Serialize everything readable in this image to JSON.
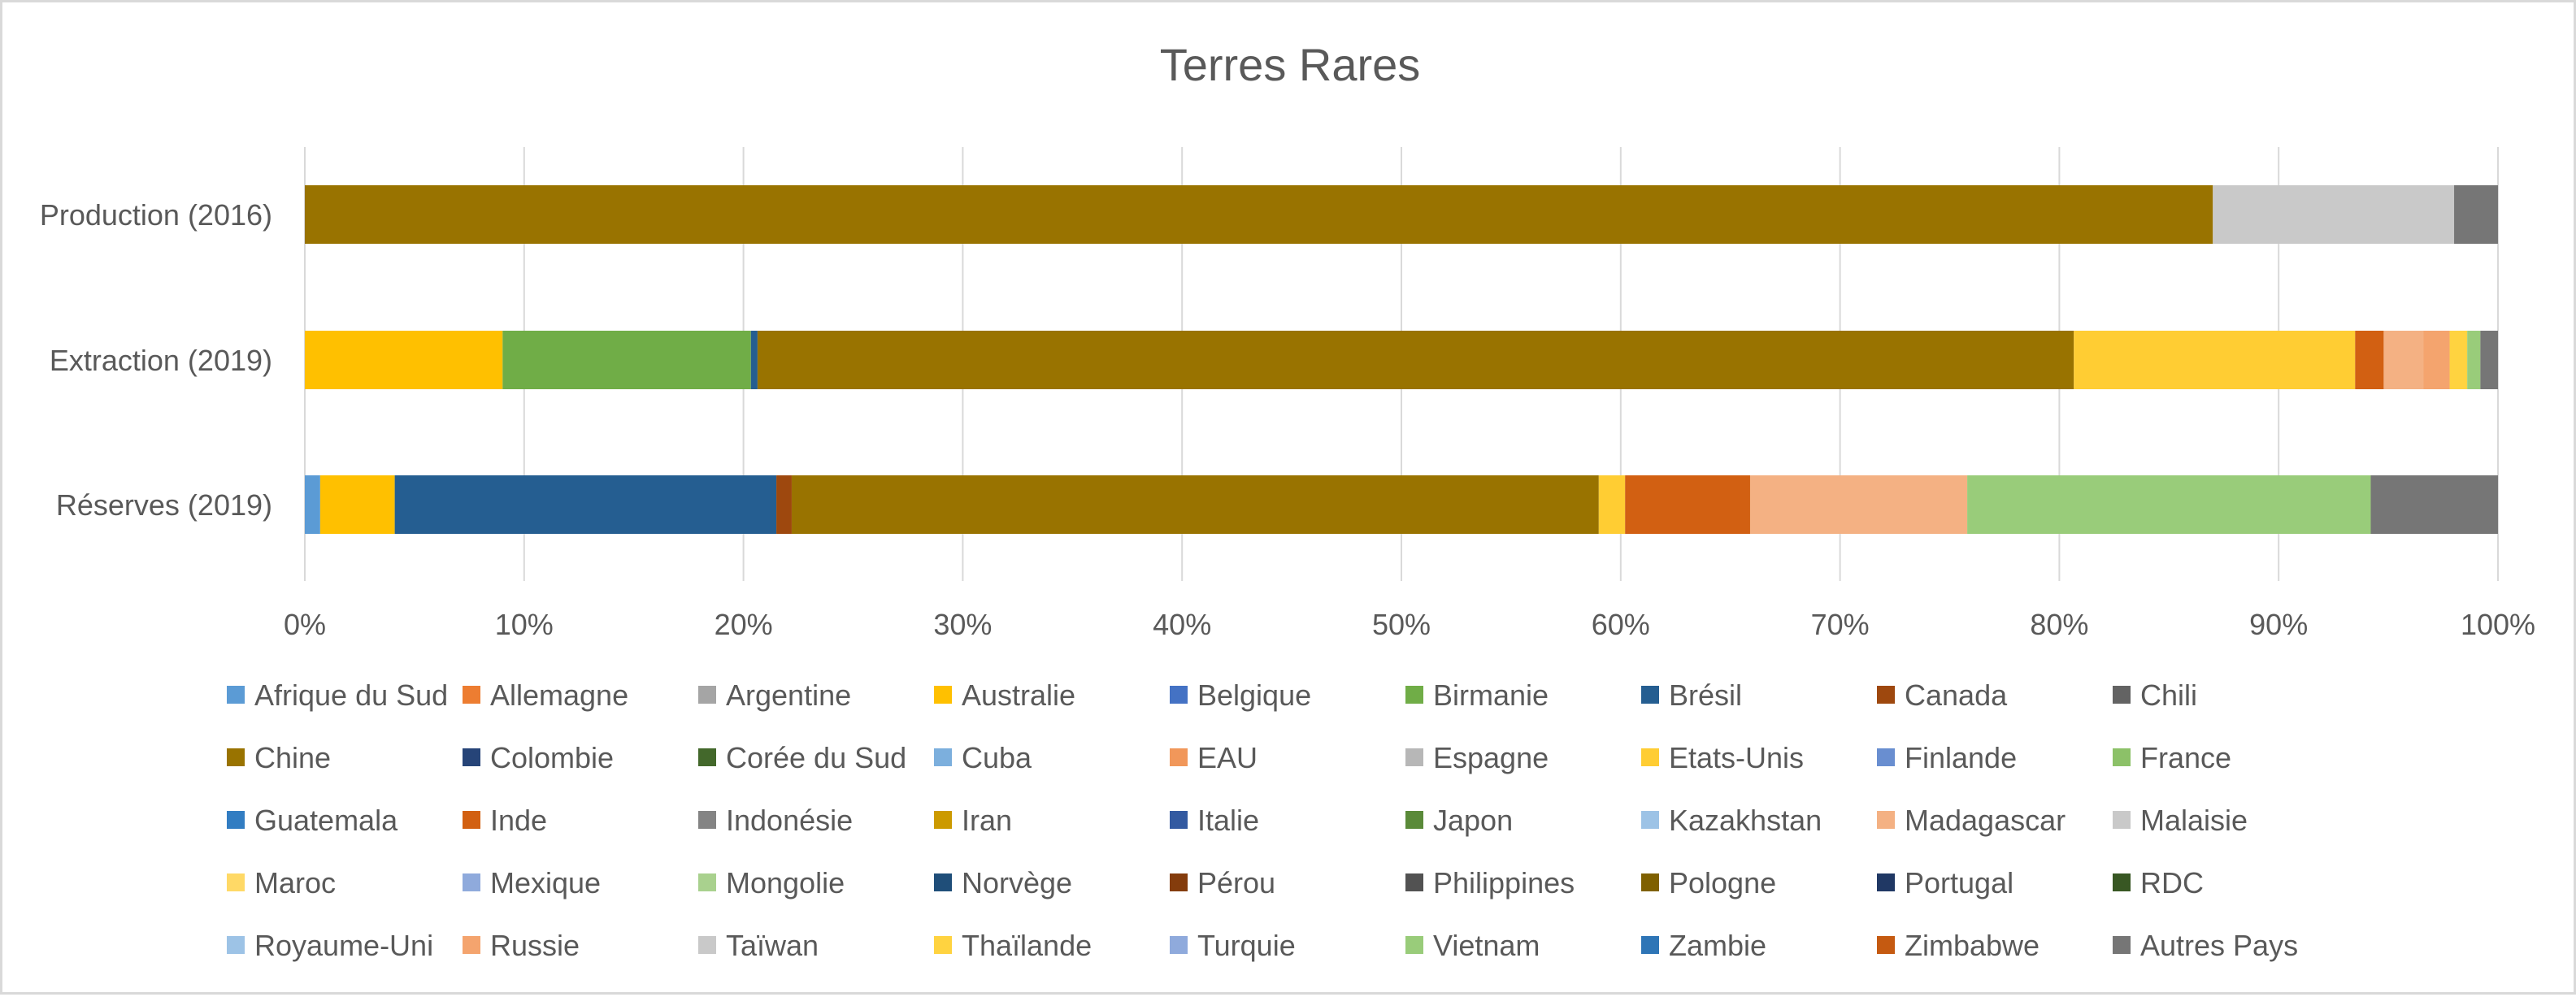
{
  "chart_data": {
    "type": "bar",
    "orientation": "horizontal",
    "stacked": "percent",
    "title": "Terres Rares",
    "xlabel": "",
    "ylabel": "",
    "xlim": [
      0,
      100
    ],
    "x_ticks": [
      "0%",
      "10%",
      "20%",
      "30%",
      "40%",
      "50%",
      "60%",
      "70%",
      "80%",
      "90%",
      "100%"
    ],
    "grid": true,
    "legend_position": "bottom",
    "categories": [
      "Production (2016)",
      "Extraction (2019)",
      "Réserves (2019)"
    ],
    "series": [
      {
        "name": "Afrique du Sud",
        "color": "#5b9bd5",
        "values": [
          0,
          0,
          0.7
        ]
      },
      {
        "name": "Allemagne",
        "color": "#ed7d31",
        "values": [
          0,
          0,
          0
        ]
      },
      {
        "name": "Argentine",
        "color": "#a5a5a5",
        "values": [
          0,
          0,
          0
        ]
      },
      {
        "name": "Australie",
        "color": "#ffc000",
        "values": [
          0,
          9.0,
          3.4
        ]
      },
      {
        "name": "Belgique",
        "color": "#4472c4",
        "values": [
          0,
          0,
          0
        ]
      },
      {
        "name": "Birmanie",
        "color": "#70ad47",
        "values": [
          0,
          11.3,
          0
        ]
      },
      {
        "name": "Brésil",
        "color": "#255e91",
        "values": [
          0,
          0.3,
          17.4
        ]
      },
      {
        "name": "Canada",
        "color": "#9e480e",
        "values": [
          0,
          0,
          0.7
        ]
      },
      {
        "name": "Chili",
        "color": "#636363",
        "values": [
          0,
          0,
          0
        ]
      },
      {
        "name": "Chine",
        "color": "#997300",
        "values": [
          87.0,
          59.9,
          36.8
        ]
      },
      {
        "name": "Colombie",
        "color": "#264478",
        "values": [
          0,
          0,
          0
        ]
      },
      {
        "name": "Corée du Sud",
        "color": "#43682b",
        "values": [
          0,
          0,
          0
        ]
      },
      {
        "name": "Cuba",
        "color": "#7cafdd",
        "values": [
          0,
          0,
          0
        ]
      },
      {
        "name": "EAU",
        "color": "#f1975a",
        "values": [
          0,
          0,
          0
        ]
      },
      {
        "name": "Espagne",
        "color": "#b7b7b7",
        "values": [
          0,
          0,
          0
        ]
      },
      {
        "name": "Etats-Unis",
        "color": "#ffcd33",
        "values": [
          0,
          12.8,
          1.2
        ]
      },
      {
        "name": "Finlande",
        "color": "#698ed0",
        "values": [
          0,
          0,
          0
        ]
      },
      {
        "name": "France",
        "color": "#8cc168",
        "values": [
          0,
          0,
          0
        ]
      },
      {
        "name": "Guatemala",
        "color": "#327dc2",
        "values": [
          0,
          0,
          0
        ]
      },
      {
        "name": "Inde",
        "color": "#d26012",
        "values": [
          0,
          1.3,
          5.7
        ]
      },
      {
        "name": "Indonésie",
        "color": "#848484",
        "values": [
          0,
          0,
          0
        ]
      },
      {
        "name": "Iran",
        "color": "#cc9a00",
        "values": [
          0,
          0,
          0
        ]
      },
      {
        "name": "Italie",
        "color": "#335aa1",
        "values": [
          0,
          0,
          0
        ]
      },
      {
        "name": "Japon",
        "color": "#5a8a39",
        "values": [
          0,
          0,
          0
        ]
      },
      {
        "name": "Kazakhstan",
        "color": "#9dc3e6",
        "values": [
          0,
          0,
          0
        ]
      },
      {
        "name": "Madagascar",
        "color": "#f4b183",
        "values": [
          0,
          1.8,
          9.9
        ]
      },
      {
        "name": "Malaisie",
        "color": "#c9c9c9",
        "values": [
          11.0,
          0,
          0
        ]
      },
      {
        "name": "Maroc",
        "color": "#ffd966",
        "values": [
          0,
          0,
          0
        ]
      },
      {
        "name": "Mexique",
        "color": "#8faadc",
        "values": [
          0,
          0,
          0
        ]
      },
      {
        "name": "Mongolie",
        "color": "#a9d18e",
        "values": [
          0,
          0,
          0
        ]
      },
      {
        "name": "Norvège",
        "color": "#1f4e79",
        "values": [
          0,
          0,
          0
        ]
      },
      {
        "name": "Pérou",
        "color": "#843c0c",
        "values": [
          0,
          0,
          0
        ]
      },
      {
        "name": "Philippines",
        "color": "#525252",
        "values": [
          0,
          0,
          0
        ]
      },
      {
        "name": "Pologne",
        "color": "#7f6000",
        "values": [
          0,
          0,
          0
        ]
      },
      {
        "name": "Portugal",
        "color": "#203864",
        "values": [
          0,
          0,
          0
        ]
      },
      {
        "name": "RDC",
        "color": "#385723",
        "values": [
          0,
          0,
          0
        ]
      },
      {
        "name": "Royaume-Uni",
        "color": "#9dc3e6",
        "values": [
          0,
          0,
          0
        ]
      },
      {
        "name": "Russie",
        "color": "#f4a46e",
        "values": [
          0,
          1.2,
          0
        ]
      },
      {
        "name": "Taïwan",
        "color": "#c9c9c9",
        "values": [
          0,
          0,
          0
        ]
      },
      {
        "name": "Thaïlande",
        "color": "#ffd340",
        "values": [
          0,
          0.8,
          0
        ]
      },
      {
        "name": "Turquie",
        "color": "#8faadc",
        "values": [
          0,
          0,
          0
        ]
      },
      {
        "name": "Vietnam",
        "color": "#99cc7a",
        "values": [
          0,
          0.6,
          18.4
        ]
      },
      {
        "name": "Zambie",
        "color": "#2e75b6",
        "values": [
          0,
          0,
          0
        ]
      },
      {
        "name": "Zimbabwe",
        "color": "#c55a11",
        "values": [
          0,
          0,
          0
        ]
      },
      {
        "name": "Autres Pays",
        "color": "#767676",
        "values": [
          2.0,
          0.8,
          5.8
        ]
      }
    ]
  }
}
